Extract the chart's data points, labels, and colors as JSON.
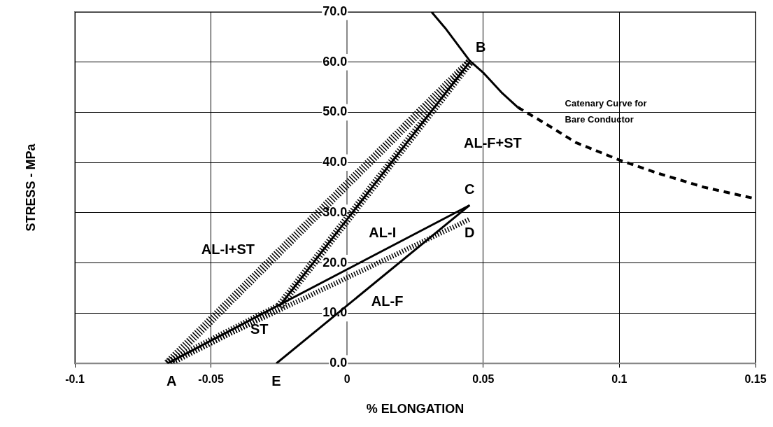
{
  "chart_data": {
    "type": "line",
    "xlabel": "% ELONGATION",
    "ylabel": "STRESS - MPa",
    "xlim": [
      -0.1,
      0.15
    ],
    "xticks": [
      -0.1,
      -0.05,
      0,
      0.05,
      0.1,
      0.15
    ],
    "ylim": [
      0,
      70
    ],
    "yticks": [
      {
        "value": 0,
        "label": "0.0"
      },
      {
        "value": 10,
        "label": "10.0"
      },
      {
        "value": 20,
        "label": "20.0"
      },
      {
        "value": 30,
        "label": "30.0"
      },
      {
        "value": 40,
        "label": "40.0"
      },
      {
        "value": 50,
        "label": "50.0"
      },
      {
        "value": 60,
        "label": "60.0"
      },
      {
        "value": 70,
        "label": "70.0"
      }
    ],
    "grid": true,
    "legend": false,
    "marker": "none",
    "series": [
      {
        "color": "#000000",
        "line_style": "dotted",
        "x": [
          -0.066,
          0.045
        ],
        "values": [
          0,
          60
        ]
      },
      {
        "color": "#000000",
        "line_style": "dotted",
        "x": [
          -0.066,
          -0.025,
          0.045
        ],
        "values": [
          0,
          11.3,
          60
        ]
      },
      {
        "color": "#000000",
        "line_style": "solid",
        "x": [
          -0.025,
          0.045
        ],
        "values": [
          11.3,
          60
        ]
      },
      {
        "color": "#000000",
        "line_style": "solid",
        "x": [
          -0.066,
          0.045
        ],
        "values": [
          0,
          31.5
        ]
      },
      {
        "color": "#000000",
        "line_style": "solid",
        "x": [
          -0.026,
          0.045
        ],
        "values": [
          0,
          31.5
        ]
      },
      {
        "color": "#000000",
        "line_style": "dotted",
        "x": [
          -0.066,
          0.045
        ],
        "values": [
          0,
          28.7
        ]
      },
      {
        "color": "#000000",
        "line_style": "solid",
        "x": [
          0.031,
          0.036,
          0.045,
          0.05,
          0.057,
          0.0627
        ],
        "values": [
          70,
          66.8,
          60.3,
          57.9,
          53.8,
          51
        ]
      },
      {
        "color": "#000000",
        "line_style": "dashed",
        "x": [
          0.0627,
          0.073,
          0.084,
          0.1,
          0.114,
          0.131,
          0.15
        ],
        "values": [
          51,
          47.7,
          44,
          40.5,
          37.9,
          35.1,
          32.8
        ]
      }
    ],
    "annotations": [
      {
        "text": "A",
        "x": -0.066,
        "y": 0
      },
      {
        "text": "B",
        "x": 0.045,
        "y": 60
      },
      {
        "text": "C",
        "x": 0.045,
        "y": 31.5
      },
      {
        "text": "D",
        "x": 0.045,
        "y": 28.7
      },
      {
        "text": "E",
        "x": -0.026,
        "y": 0
      },
      "AL-I+ST",
      "AL-F+ST",
      "AL-I",
      "AL-F",
      "ST",
      "Catenary Curve for\nBare Conductor"
    ]
  }
}
